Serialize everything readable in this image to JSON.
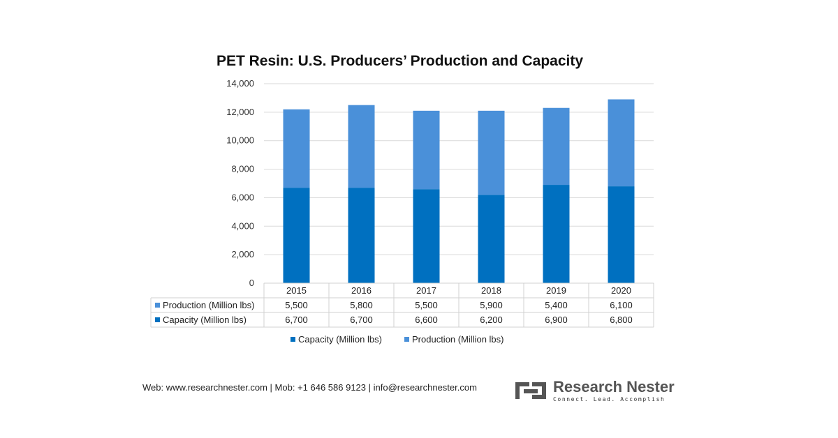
{
  "colors": {
    "production": "#4a90d9",
    "capacity": "#0070c0",
    "grid": "#d9d9d9",
    "brand_gray": "#555555"
  },
  "chart_data": {
    "type": "bar",
    "stacked": true,
    "title": "PET Resin: U.S. Producers’ Production and Capacity",
    "categories": [
      "2015",
      "2016",
      "2017",
      "2018",
      "2019",
      "2020"
    ],
    "series": [
      {
        "name": "Capacity (Million lbs)",
        "values": [
          6700,
          6700,
          6600,
          6200,
          6900,
          6800
        ],
        "display": [
          "6,700",
          "6,700",
          "6,600",
          "6,200",
          "6,900",
          "6,800"
        ]
      },
      {
        "name": "Production (Million lbs)",
        "values": [
          5500,
          5800,
          5500,
          5900,
          5400,
          6100
        ],
        "display": [
          "5,500",
          "5,800",
          "5,500",
          "5,900",
          "5,400",
          "6,100"
        ]
      }
    ],
    "ylim": [
      0,
      14000
    ],
    "yticks": [
      0,
      2000,
      4000,
      6000,
      8000,
      10000,
      12000,
      14000
    ],
    "ytick_labels": [
      "0",
      "2,000",
      "4,000",
      "6,000",
      "8,000",
      "10,000",
      "12,000",
      "14,000"
    ],
    "grid": true,
    "data_table": true,
    "legend_position": "bottom"
  },
  "footer": {
    "contact": "Web: www.researchnester.com | Mob: +1 646 586 9123 | info@researchnester.com"
  },
  "brand": {
    "name": "Research Nester",
    "tagline": "Connect. Lead. Accomplish",
    "icon": "research-nester-logo-icon"
  }
}
